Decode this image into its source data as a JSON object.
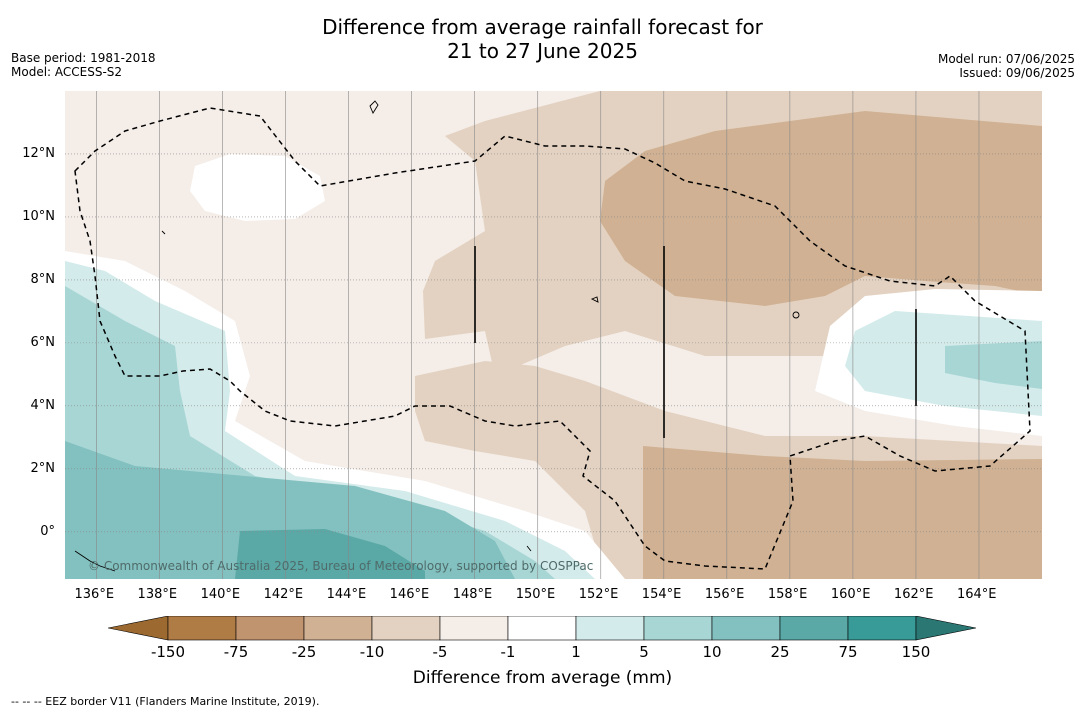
{
  "title": {
    "line1": "Difference from average rainfall forecast for",
    "line2": "21 to 27 June 2025"
  },
  "meta": {
    "base_period": "Base period: 1981-2018",
    "model": "Model: ACCESS-S2",
    "model_run": "Model run: 07/06/2025",
    "issued": "Issued: 09/06/2025"
  },
  "map": {
    "lon_range": [
      135,
      166
    ],
    "lat_range": [
      -1.5,
      14
    ],
    "lon_ticks": [
      "136°E",
      "138°E",
      "140°E",
      "142°E",
      "144°E",
      "146°E",
      "148°E",
      "150°E",
      "152°E",
      "154°E",
      "156°E",
      "158°E",
      "160°E",
      "162°E",
      "164°E"
    ],
    "lat_ticks": [
      "12°N",
      "10°N",
      "8°N",
      "6°N",
      "4°N",
      "2°N",
      "0°"
    ],
    "copyright": "© Commonwealth of Australia 2025, Bureau of Meteorology, supported by COSPPac"
  },
  "colorbar": {
    "title": "Difference from average (mm)",
    "labels": [
      "-150",
      "-75",
      "-25",
      "-10",
      "-5",
      "-1",
      "1",
      "5",
      "10",
      "25",
      "75",
      "150"
    ],
    "colors": [
      "#9c6a30",
      "#b07c46",
      "#c19470",
      "#d0b193",
      "#e3d2c1",
      "#f4ede8",
      "#ffffff",
      "#d3ebea",
      "#a8d6d5",
      "#83c1c0",
      "#5aa9a7",
      "#399b98",
      "#2a7774"
    ]
  },
  "footer": "--  --  -- EEZ border V11 (Flanders Marine Institute, 2019)."
}
